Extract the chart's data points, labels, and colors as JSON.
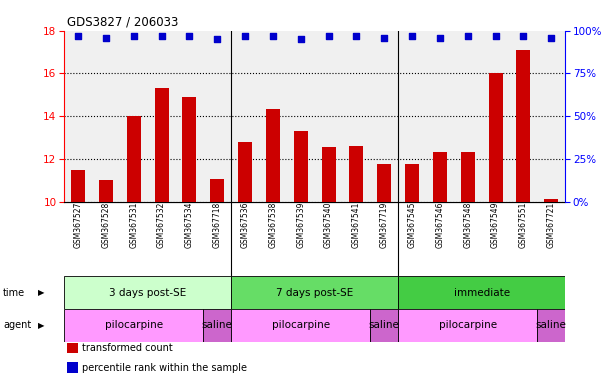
{
  "title": "GDS3827 / 206033",
  "samples": [
    "GSM367527",
    "GSM367528",
    "GSM367531",
    "GSM367532",
    "GSM367534",
    "GSM367718",
    "GSM367536",
    "GSM367538",
    "GSM367539",
    "GSM367540",
    "GSM367541",
    "GSM367719",
    "GSM367545",
    "GSM367546",
    "GSM367548",
    "GSM367549",
    "GSM367551",
    "GSM367721"
  ],
  "transformed_count": [
    11.5,
    11.0,
    14.0,
    15.3,
    14.9,
    11.05,
    12.8,
    14.35,
    13.3,
    12.55,
    12.6,
    11.75,
    11.75,
    12.3,
    12.3,
    16.0,
    17.1,
    10.1
  ],
  "percentile_rank": [
    97,
    96,
    97,
    97,
    97,
    95,
    97,
    97,
    95,
    97,
    97,
    96,
    97,
    96,
    97,
    97,
    97,
    96
  ],
  "ylim_left": [
    10,
    18
  ],
  "ylim_right": [
    0,
    100
  ],
  "yticks_left": [
    10,
    12,
    14,
    16,
    18
  ],
  "yticks_right": [
    0,
    25,
    50,
    75,
    100
  ],
  "ytick_labels_right": [
    "0%",
    "25%",
    "50%",
    "75%",
    "100%"
  ],
  "bar_color": "#cc0000",
  "dot_color": "#0000cc",
  "plot_bg": "#f0f0f0",
  "time_groups": [
    {
      "label": "3 days post-SE",
      "start": 0,
      "end": 5,
      "color": "#ccffcc"
    },
    {
      "label": "7 days post-SE",
      "start": 6,
      "end": 11,
      "color": "#66dd66"
    },
    {
      "label": "immediate",
      "start": 12,
      "end": 17,
      "color": "#44cc44"
    }
  ],
  "agent_groups": [
    {
      "label": "pilocarpine",
      "start": 0,
      "end": 4,
      "color": "#ff99ff"
    },
    {
      "label": "saline",
      "start": 5,
      "end": 5,
      "color": "#cc66cc"
    },
    {
      "label": "pilocarpine",
      "start": 6,
      "end": 10,
      "color": "#ff99ff"
    },
    {
      "label": "saline",
      "start": 11,
      "end": 11,
      "color": "#cc66cc"
    },
    {
      "label": "pilocarpine",
      "start": 12,
      "end": 16,
      "color": "#ff99ff"
    },
    {
      "label": "saline",
      "start": 17,
      "end": 17,
      "color": "#cc66cc"
    }
  ],
  "legend_items": [
    {
      "label": "transformed count",
      "color": "#cc0000"
    },
    {
      "label": "percentile rank within the sample",
      "color": "#0000cc"
    }
  ],
  "group_separators": [
    5.5,
    11.5
  ]
}
